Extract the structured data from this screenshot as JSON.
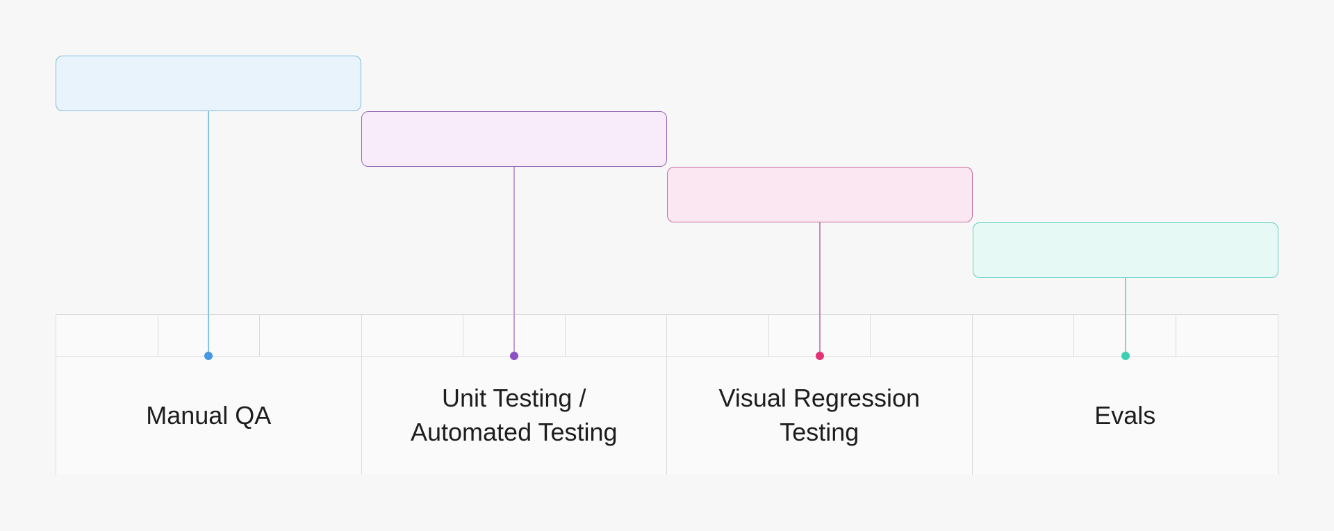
{
  "page": {
    "background": "#f7f7f7"
  },
  "diagram": {
    "type": "cascade-timeline",
    "stages": [
      {
        "id": "manual-qa",
        "label": "Manual QA",
        "label_lines": [
          "Manual QA"
        ],
        "box_fill": "#e9f3fb",
        "box_border": "#7fbcdb",
        "line_color": "#8ac4e6",
        "dot_color": "#4697e3"
      },
      {
        "id": "unit-automated-testing",
        "label": "Unit Testing / Automated Testing",
        "label_lines": [
          "Unit Testing /",
          "Automated Testing"
        ],
        "box_fill": "#f8ecfa",
        "box_border": "#9666b2",
        "line_color": "#bf9ed1",
        "dot_color": "#8b50c6"
      },
      {
        "id": "visual-regression-testing",
        "label": "Visual Regression Testing",
        "label_lines": [
          "Visual Regression",
          "Testing"
        ],
        "box_fill": "#fbe7f1",
        "box_border": "#c66d9b",
        "line_color": "#ca8ab4",
        "dot_color": "#e23377"
      },
      {
        "id": "evals",
        "label": "Evals",
        "label_lines": [
          "Evals"
        ],
        "box_fill": "#e7f9f4",
        "box_border": "#5ed1c0",
        "line_color": "#79dac9",
        "dot_color": "#3dcfb3"
      }
    ],
    "timeline": {
      "ticks_per_stage": 3,
      "grid_color": "#dcdcdc",
      "cell_fill": "#fafafa",
      "text_color": "#1d1d1d"
    }
  }
}
